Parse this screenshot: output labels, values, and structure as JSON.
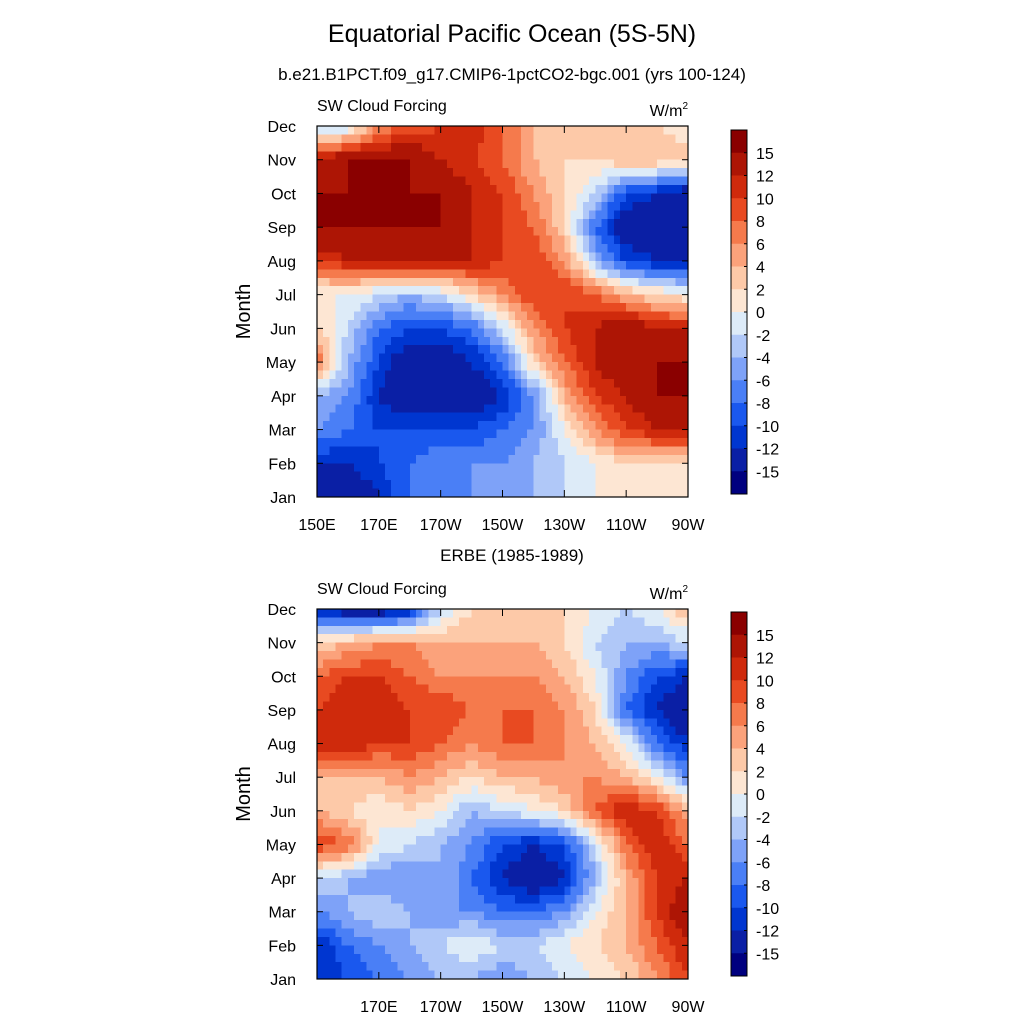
{
  "title": "Equatorial Pacific Ocean (5S-5N)",
  "subtitle": "b.e21.B1PCT.f09_g17.CMIP6-1pctCO2-bgc.001 (yrs 100-124)",
  "chart_data": [
    {
      "type": "heatmap",
      "subtitle": "",
      "panel_title": "SW Cloud Forcing",
      "units_base": "W/m",
      "units_exp": "2",
      "ylabel": "Month",
      "xlabel": "",
      "x_ticks": [
        "150E",
        "170E",
        "170W",
        "150W",
        "130W",
        "110W",
        "90W"
      ],
      "x_tick_lons": [
        150,
        170,
        190,
        210,
        230,
        250,
        270
      ],
      "x_range": [
        150,
        270
      ],
      "y_ticks": [
        "Jan",
        "Feb",
        "Mar",
        "Apr",
        "May",
        "Jun",
        "Jul",
        "Aug",
        "Sep",
        "Oct",
        "Nov",
        "Dec"
      ],
      "lons": [
        150,
        160,
        170,
        180,
        190,
        200,
        210,
        220,
        230,
        240,
        250,
        260,
        270
      ],
      "values": [
        [
          -15,
          -15,
          -12,
          -8,
          -8,
          -6,
          -6,
          -4,
          -2,
          0,
          0,
          0,
          2
        ],
        [
          -12,
          -12,
          -10,
          -8,
          -6,
          -6,
          -6,
          -4,
          -2,
          0,
          2,
          2,
          2
        ],
        [
          -6,
          -8,
          -10,
          -10,
          -10,
          -10,
          -8,
          -6,
          0,
          6,
          10,
          12,
          12
        ],
        [
          -4,
          -6,
          -12,
          -15,
          -15,
          -15,
          -12,
          -6,
          4,
          10,
          12,
          15,
          15
        ],
        [
          8,
          -4,
          -10,
          -15,
          -15,
          -12,
          -8,
          2,
          8,
          12,
          15,
          15,
          15
        ],
        [
          2,
          -2,
          -8,
          -10,
          -10,
          -8,
          -2,
          6,
          10,
          12,
          15,
          12,
          12
        ],
        [
          0,
          0,
          -2,
          -4,
          -2,
          2,
          6,
          10,
          10,
          8,
          4,
          2,
          0
        ],
        [
          10,
          12,
          12,
          12,
          12,
          12,
          10,
          10,
          6,
          -4,
          -10,
          -12,
          -12
        ],
        [
          15,
          15,
          15,
          15,
          15,
          12,
          10,
          8,
          2,
          -8,
          -15,
          -15,
          -15
        ],
        [
          15,
          15,
          15,
          15,
          15,
          12,
          10,
          6,
          2,
          -2,
          -10,
          -12,
          -15
        ],
        [
          12,
          15,
          15,
          15,
          12,
          10,
          8,
          4,
          2,
          2,
          4,
          4,
          4
        ],
        [
          -4,
          -2,
          6,
          8,
          10,
          12,
          8,
          4,
          2,
          4,
          4,
          2,
          0
        ]
      ],
      "colorbar": {
        "labels": [
          "15",
          "12",
          "10",
          "8",
          "6",
          "4",
          "2",
          "0",
          "-2",
          "-4",
          "-6",
          "-8",
          "-10",
          "-12",
          "-15"
        ],
        "levels": [
          -15,
          -12,
          -10,
          -8,
          -6,
          -4,
          -2,
          0,
          2,
          4,
          6,
          8,
          10,
          12,
          15
        ],
        "colors": [
          "#00007f",
          "#0a1fa5",
          "#0036d0",
          "#1a58ee",
          "#4a7ff6",
          "#7ea2f8",
          "#b0c8f8",
          "#ddebf8",
          "#fde6d3",
          "#fdc9a8",
          "#fba27b",
          "#f57a4c",
          "#e84a21",
          "#cf2a0c",
          "#ad1505",
          "#8a0000"
        ]
      }
    },
    {
      "type": "heatmap",
      "subtitle": "ERBE (1985-1989)",
      "panel_title": "SW Cloud Forcing",
      "units_base": "W/m",
      "units_exp": "2",
      "ylabel": "Month",
      "xlabel": "",
      "x_ticks": [
        "",
        "170E",
        "170W",
        "150W",
        "130W",
        "110W",
        "90W"
      ],
      "x_tick_lons": [
        150,
        170,
        190,
        210,
        230,
        250,
        270
      ],
      "x_range": [
        150,
        270
      ],
      "y_ticks": [
        "Jan",
        "Feb",
        "Mar",
        "Apr",
        "May",
        "Jun",
        "Jul",
        "Aug",
        "Sep",
        "Oct",
        "Nov",
        "Dec"
      ],
      "lons": [
        150,
        160,
        170,
        180,
        190,
        200,
        210,
        220,
        230,
        240,
        250,
        260,
        270
      ],
      "values": [
        [
          -12,
          -10,
          -8,
          -6,
          -4,
          -4,
          -6,
          -4,
          -2,
          0,
          2,
          6,
          10
        ],
        [
          -12,
          -8,
          -6,
          -4,
          -2,
          0,
          -2,
          -2,
          0,
          2,
          4,
          8,
          12
        ],
        [
          -6,
          -4,
          -2,
          -4,
          -6,
          -6,
          -8,
          -8,
          -6,
          0,
          4,
          10,
          15
        ],
        [
          -2,
          -4,
          -6,
          -6,
          -4,
          -8,
          -12,
          -15,
          -12,
          -4,
          4,
          10,
          12
        ],
        [
          10,
          8,
          0,
          -2,
          -4,
          -6,
          -10,
          -12,
          -10,
          -2,
          8,
          12,
          8
        ],
        [
          4,
          2,
          0,
          2,
          0,
          -4,
          -2,
          0,
          2,
          8,
          12,
          10,
          4
        ],
        [
          4,
          4,
          4,
          6,
          4,
          2,
          4,
          4,
          6,
          6,
          4,
          0,
          -6
        ],
        [
          12,
          12,
          10,
          10,
          8,
          6,
          8,
          8,
          6,
          4,
          0,
          -8,
          -12
        ],
        [
          10,
          12,
          12,
          10,
          10,
          8,
          8,
          8,
          6,
          2,
          -8,
          -12,
          -15
        ],
        [
          8,
          10,
          10,
          8,
          6,
          6,
          6,
          6,
          4,
          0,
          -6,
          -10,
          -12
        ],
        [
          2,
          4,
          6,
          6,
          4,
          4,
          4,
          4,
          2,
          -2,
          -4,
          -4,
          -2
        ],
        [
          -12,
          -15,
          -15,
          -12,
          -2,
          2,
          2,
          4,
          2,
          0,
          -2,
          0,
          4
        ]
      ],
      "colorbar": {
        "labels": [
          "15",
          "12",
          "10",
          "8",
          "6",
          "4",
          "2",
          "0",
          "-2",
          "-4",
          "-6",
          "-8",
          "-10",
          "-12",
          "-15"
        ],
        "levels": [
          -15,
          -12,
          -10,
          -8,
          -6,
          -4,
          -2,
          0,
          2,
          4,
          6,
          8,
          10,
          12,
          15
        ],
        "colors": [
          "#00007f",
          "#0a1fa5",
          "#0036d0",
          "#1a58ee",
          "#4a7ff6",
          "#7ea2f8",
          "#b0c8f8",
          "#ddebf8",
          "#fde6d3",
          "#fdc9a8",
          "#fba27b",
          "#f57a4c",
          "#e84a21",
          "#cf2a0c",
          "#ad1505",
          "#8a0000"
        ]
      }
    }
  ]
}
